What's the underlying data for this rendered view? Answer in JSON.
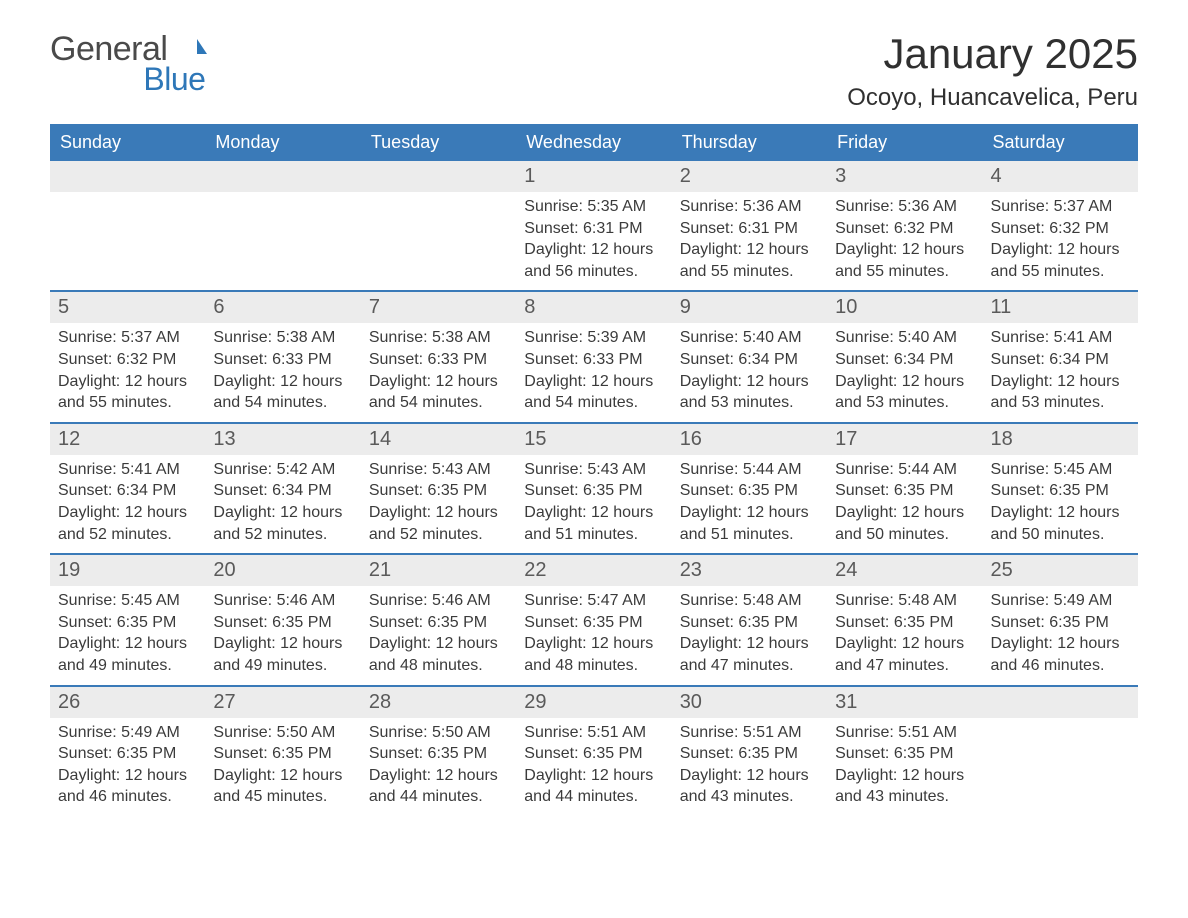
{
  "brand": {
    "word1": "General",
    "word2": "Blue"
  },
  "title": "January 2025",
  "location": "Ocoyo, Huancavelica, Peru",
  "colors": {
    "header_bg": "#3a7ab8",
    "header_text": "#ffffff",
    "row_sep": "#3a7ab8",
    "daynum_bg": "#ececec",
    "body_text": "#3b3b3b",
    "page_bg": "#ffffff",
    "brand_blue": "#2e77b8"
  },
  "typography": {
    "title_fontsize": 42,
    "location_fontsize": 24,
    "dow_fontsize": 18,
    "daynum_fontsize": 20,
    "body_fontsize": 16
  },
  "days_of_week": [
    "Sunday",
    "Monday",
    "Tuesday",
    "Wednesday",
    "Thursday",
    "Friday",
    "Saturday"
  ],
  "weeks": [
    [
      {
        "n": "",
        "sunrise": "",
        "sunset": "",
        "daylight": ""
      },
      {
        "n": "",
        "sunrise": "",
        "sunset": "",
        "daylight": ""
      },
      {
        "n": "",
        "sunrise": "",
        "sunset": "",
        "daylight": ""
      },
      {
        "n": "1",
        "sunrise": "Sunrise: 5:35 AM",
        "sunset": "Sunset: 6:31 PM",
        "daylight": "Daylight: 12 hours and 56 minutes."
      },
      {
        "n": "2",
        "sunrise": "Sunrise: 5:36 AM",
        "sunset": "Sunset: 6:31 PM",
        "daylight": "Daylight: 12 hours and 55 minutes."
      },
      {
        "n": "3",
        "sunrise": "Sunrise: 5:36 AM",
        "sunset": "Sunset: 6:32 PM",
        "daylight": "Daylight: 12 hours and 55 minutes."
      },
      {
        "n": "4",
        "sunrise": "Sunrise: 5:37 AM",
        "sunset": "Sunset: 6:32 PM",
        "daylight": "Daylight: 12 hours and 55 minutes."
      }
    ],
    [
      {
        "n": "5",
        "sunrise": "Sunrise: 5:37 AM",
        "sunset": "Sunset: 6:32 PM",
        "daylight": "Daylight: 12 hours and 55 minutes."
      },
      {
        "n": "6",
        "sunrise": "Sunrise: 5:38 AM",
        "sunset": "Sunset: 6:33 PM",
        "daylight": "Daylight: 12 hours and 54 minutes."
      },
      {
        "n": "7",
        "sunrise": "Sunrise: 5:38 AM",
        "sunset": "Sunset: 6:33 PM",
        "daylight": "Daylight: 12 hours and 54 minutes."
      },
      {
        "n": "8",
        "sunrise": "Sunrise: 5:39 AM",
        "sunset": "Sunset: 6:33 PM",
        "daylight": "Daylight: 12 hours and 54 minutes."
      },
      {
        "n": "9",
        "sunrise": "Sunrise: 5:40 AM",
        "sunset": "Sunset: 6:34 PM",
        "daylight": "Daylight: 12 hours and 53 minutes."
      },
      {
        "n": "10",
        "sunrise": "Sunrise: 5:40 AM",
        "sunset": "Sunset: 6:34 PM",
        "daylight": "Daylight: 12 hours and 53 minutes."
      },
      {
        "n": "11",
        "sunrise": "Sunrise: 5:41 AM",
        "sunset": "Sunset: 6:34 PM",
        "daylight": "Daylight: 12 hours and 53 minutes."
      }
    ],
    [
      {
        "n": "12",
        "sunrise": "Sunrise: 5:41 AM",
        "sunset": "Sunset: 6:34 PM",
        "daylight": "Daylight: 12 hours and 52 minutes."
      },
      {
        "n": "13",
        "sunrise": "Sunrise: 5:42 AM",
        "sunset": "Sunset: 6:34 PM",
        "daylight": "Daylight: 12 hours and 52 minutes."
      },
      {
        "n": "14",
        "sunrise": "Sunrise: 5:43 AM",
        "sunset": "Sunset: 6:35 PM",
        "daylight": "Daylight: 12 hours and 52 minutes."
      },
      {
        "n": "15",
        "sunrise": "Sunrise: 5:43 AM",
        "sunset": "Sunset: 6:35 PM",
        "daylight": "Daylight: 12 hours and 51 minutes."
      },
      {
        "n": "16",
        "sunrise": "Sunrise: 5:44 AM",
        "sunset": "Sunset: 6:35 PM",
        "daylight": "Daylight: 12 hours and 51 minutes."
      },
      {
        "n": "17",
        "sunrise": "Sunrise: 5:44 AM",
        "sunset": "Sunset: 6:35 PM",
        "daylight": "Daylight: 12 hours and 50 minutes."
      },
      {
        "n": "18",
        "sunrise": "Sunrise: 5:45 AM",
        "sunset": "Sunset: 6:35 PM",
        "daylight": "Daylight: 12 hours and 50 minutes."
      }
    ],
    [
      {
        "n": "19",
        "sunrise": "Sunrise: 5:45 AM",
        "sunset": "Sunset: 6:35 PM",
        "daylight": "Daylight: 12 hours and 49 minutes."
      },
      {
        "n": "20",
        "sunrise": "Sunrise: 5:46 AM",
        "sunset": "Sunset: 6:35 PM",
        "daylight": "Daylight: 12 hours and 49 minutes."
      },
      {
        "n": "21",
        "sunrise": "Sunrise: 5:46 AM",
        "sunset": "Sunset: 6:35 PM",
        "daylight": "Daylight: 12 hours and 48 minutes."
      },
      {
        "n": "22",
        "sunrise": "Sunrise: 5:47 AM",
        "sunset": "Sunset: 6:35 PM",
        "daylight": "Daylight: 12 hours and 48 minutes."
      },
      {
        "n": "23",
        "sunrise": "Sunrise: 5:48 AM",
        "sunset": "Sunset: 6:35 PM",
        "daylight": "Daylight: 12 hours and 47 minutes."
      },
      {
        "n": "24",
        "sunrise": "Sunrise: 5:48 AM",
        "sunset": "Sunset: 6:35 PM",
        "daylight": "Daylight: 12 hours and 47 minutes."
      },
      {
        "n": "25",
        "sunrise": "Sunrise: 5:49 AM",
        "sunset": "Sunset: 6:35 PM",
        "daylight": "Daylight: 12 hours and 46 minutes."
      }
    ],
    [
      {
        "n": "26",
        "sunrise": "Sunrise: 5:49 AM",
        "sunset": "Sunset: 6:35 PM",
        "daylight": "Daylight: 12 hours and 46 minutes."
      },
      {
        "n": "27",
        "sunrise": "Sunrise: 5:50 AM",
        "sunset": "Sunset: 6:35 PM",
        "daylight": "Daylight: 12 hours and 45 minutes."
      },
      {
        "n": "28",
        "sunrise": "Sunrise: 5:50 AM",
        "sunset": "Sunset: 6:35 PM",
        "daylight": "Daylight: 12 hours and 44 minutes."
      },
      {
        "n": "29",
        "sunrise": "Sunrise: 5:51 AM",
        "sunset": "Sunset: 6:35 PM",
        "daylight": "Daylight: 12 hours and 44 minutes."
      },
      {
        "n": "30",
        "sunrise": "Sunrise: 5:51 AM",
        "sunset": "Sunset: 6:35 PM",
        "daylight": "Daylight: 12 hours and 43 minutes."
      },
      {
        "n": "31",
        "sunrise": "Sunrise: 5:51 AM",
        "sunset": "Sunset: 6:35 PM",
        "daylight": "Daylight: 12 hours and 43 minutes."
      },
      {
        "n": "",
        "sunrise": "",
        "sunset": "",
        "daylight": ""
      }
    ]
  ]
}
